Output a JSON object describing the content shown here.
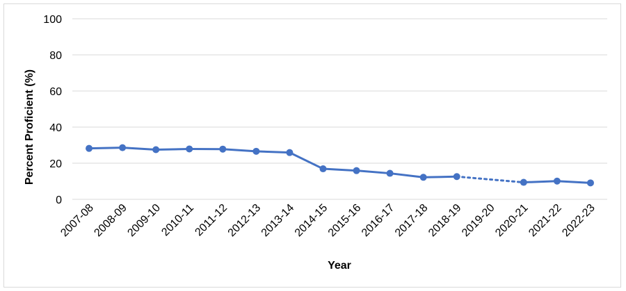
{
  "chart_data": {
    "type": "line",
    "title": "",
    "xlabel": "Year",
    "ylabel": "Percent Proficient (%)",
    "ylim": [
      0,
      100
    ],
    "yticks": [
      0,
      20,
      40,
      60,
      80,
      100
    ],
    "grid": true,
    "categories": [
      "2007-08",
      "2008-09",
      "2009-10",
      "2010-11",
      "2011-12",
      "2012-13",
      "2013-14",
      "2014-15",
      "2015-16",
      "2016-17",
      "2017-18",
      "2018-19",
      "2019-20",
      "2020-21",
      "2021-22",
      "2022-23"
    ],
    "series": [
      {
        "values": [
          28.2,
          28.6,
          27.5,
          27.9,
          27.8,
          26.6,
          25.9,
          16.9,
          15.9,
          14.4,
          12.2,
          12.6,
          null,
          9.4,
          10.1,
          9.1
        ],
        "color": "#4472c4",
        "gap_style": "dotted"
      }
    ]
  }
}
